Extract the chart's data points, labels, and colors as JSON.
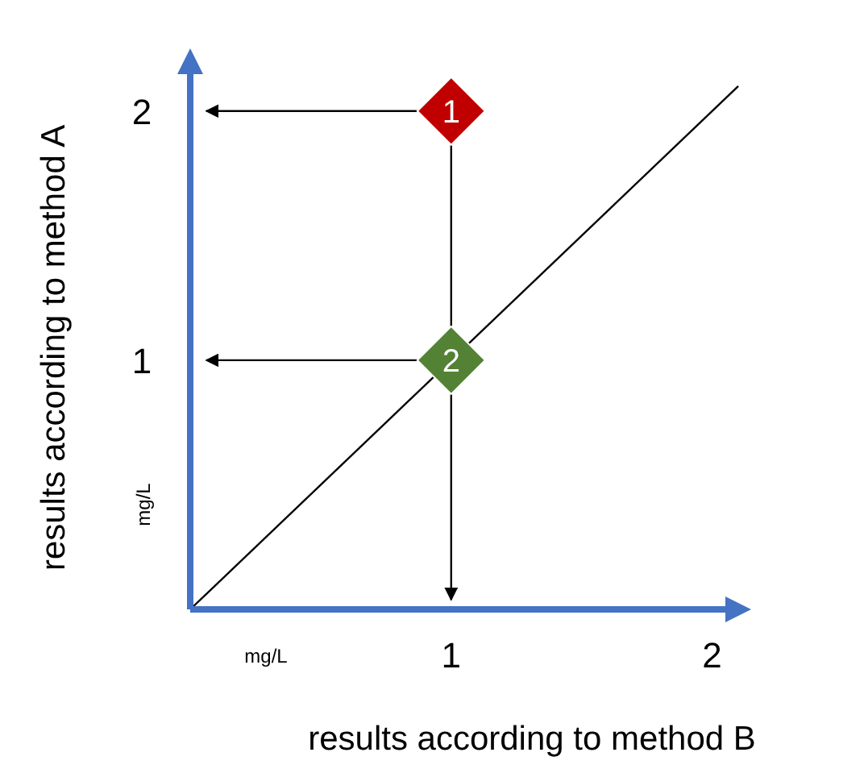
{
  "chart_data": {
    "type": "scatter",
    "xlabel": "results according to method B",
    "ylabel": "results according to method A",
    "xlim": [
      0,
      2.1
    ],
    "ylim": [
      0,
      2.2
    ],
    "xticks": [
      1,
      2
    ],
    "yticks": [
      1,
      2
    ],
    "series": [
      {
        "type": "line",
        "x": [
          0,
          2.1
        ],
        "values": [
          0,
          2.1
        ],
        "color": "#000000"
      },
      {
        "x": [
          1,
          1
        ],
        "values": [
          2,
          1
        ],
        "colors": [
          "#c00000",
          "#548235"
        ],
        "marker": "diamond"
      }
    ],
    "annotations": [
      {
        "text": "1",
        "x": 1,
        "y": 2
      },
      {
        "text": "2",
        "x": 1,
        "y": 1
      },
      "mg/L",
      "mg/L"
    ]
  }
}
